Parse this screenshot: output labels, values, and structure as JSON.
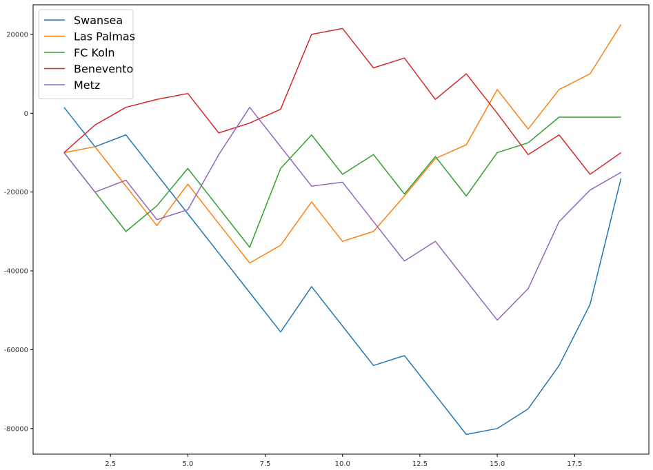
{
  "chart_data": {
    "type": "line",
    "title": "",
    "xlabel": "",
    "ylabel": "",
    "xlim": [
      0.0,
      19.9
    ],
    "ylim": [
      -86500,
      27500
    ],
    "grid": false,
    "legend_position": "top-left",
    "x_ticks": [
      2.5,
      5.0,
      7.5,
      10.0,
      12.5,
      15.0,
      17.5
    ],
    "x_tick_labels": [
      "2.5",
      "5.0",
      "7.5",
      "10.0",
      "12.5",
      "15.0",
      "17.5"
    ],
    "y_ticks": [
      20000,
      0,
      -20000,
      -40000,
      -60000,
      -80000
    ],
    "y_tick_labels": [
      "20000",
      "0",
      "-20000",
      "-40000",
      "-60000",
      "-80000"
    ],
    "x": [
      1,
      2,
      3,
      4,
      5,
      6,
      7,
      8,
      9,
      10,
      11,
      12,
      13,
      14,
      15,
      16,
      17,
      18,
      19
    ],
    "series": [
      {
        "name": "Swansea",
        "color": "#1f77b4",
        "values": [
          1500,
          -8500,
          -5500,
          -15500,
          -25500,
          -35500,
          -45500,
          -55500,
          -44000,
          -54000,
          -64000,
          -61500,
          -71500,
          -81500,
          -80000,
          -75000,
          -64000,
          -48500,
          -16500
        ]
      },
      {
        "name": "Las Palmas",
        "color": "#ff7f0e",
        "values": [
          -10000,
          -8500,
          -18500,
          -28500,
          -18000,
          -28000,
          -38000,
          -33500,
          -22500,
          -32500,
          -30000,
          -21000,
          -11500,
          -8000,
          6000,
          -4000,
          6000,
          10000,
          22500
        ]
      },
      {
        "name": "FC Koln",
        "color": "#2ca02c",
        "values": [
          -10000,
          -20000,
          -30000,
          -23500,
          -14000,
          -24000,
          -34000,
          -14000,
          -5500,
          -15500,
          -10500,
          -20500,
          -11000,
          -21000,
          -10000,
          -7500,
          -1000,
          -1000,
          -1000
        ]
      },
      {
        "name": "Benevento",
        "color": "#d62728",
        "values": [
          -10000,
          -3000,
          1500,
          3500,
          5000,
          -5000,
          -2500,
          1000,
          20000,
          21500,
          11500,
          14000,
          3500,
          10000,
          0,
          -10500,
          -5500,
          -15500,
          -10000
        ]
      },
      {
        "name": "Metz",
        "color": "#9467bd",
        "values": [
          -10000,
          -20000,
          -17000,
          -27000,
          -24500,
          -10500,
          1500,
          -8500,
          -18500,
          -17500,
          -27500,
          -37500,
          -32500,
          -42500,
          -52500,
          -44500,
          -27500,
          -19500,
          -15000
        ]
      }
    ]
  }
}
